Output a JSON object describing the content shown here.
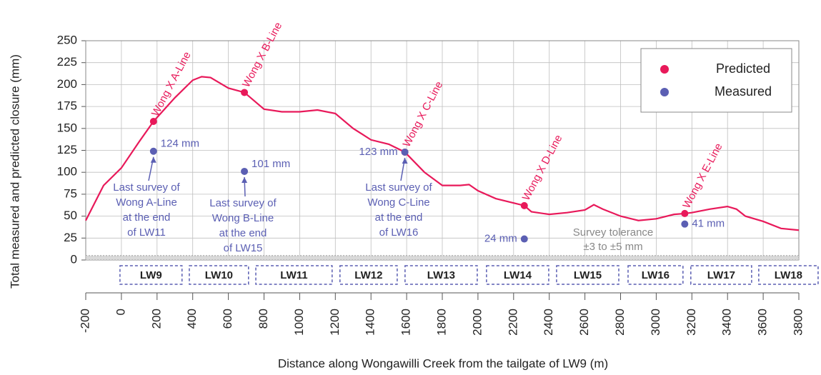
{
  "chart_data": {
    "type": "line",
    "y_title": "Total measured and predicted closure (mm)",
    "x_title": "Distance along Wongawilli Creek from the tailgate of LW9 (m)",
    "xlim": [
      -200,
      3800
    ],
    "xticks": [
      -200,
      0,
      200,
      400,
      600,
      800,
      1000,
      1200,
      1400,
      1600,
      1800,
      2000,
      2200,
      2400,
      2600,
      2800,
      3000,
      3200,
      3400,
      3600,
      3800
    ],
    "ylim": [
      0,
      250
    ],
    "yticks": [
      0,
      25,
      50,
      75,
      100,
      125,
      150,
      175,
      200,
      225,
      250
    ],
    "grid": true,
    "legend": "top-right",
    "profile": {
      "color": "#e8195a",
      "x": [
        -200,
        -100,
        0,
        100,
        180,
        300,
        400,
        450,
        500,
        600,
        690,
        800,
        900,
        1000,
        1100,
        1200,
        1300,
        1400,
        1500,
        1590,
        1700,
        1800,
        1900,
        1950,
        2000,
        2100,
        2200,
        2260,
        2300,
        2400,
        2500,
        2600,
        2650,
        2700,
        2800,
        2900,
        3000,
        3100,
        3160,
        3200,
        3300,
        3400,
        3450,
        3500,
        3600,
        3700,
        3800
      ],
      "values": [
        45,
        85,
        105,
        135,
        158,
        185,
        205,
        209,
        208,
        196,
        191,
        172,
        169,
        169,
        171,
        167,
        150,
        137,
        132,
        123,
        100,
        85,
        85,
        86,
        79,
        70,
        65,
        62,
        55,
        52,
        54,
        57,
        63,
        58,
        50,
        45,
        47,
        52,
        53,
        54,
        58,
        61,
        58,
        50,
        44,
        36,
        34
      ]
    },
    "series": [
      {
        "name": "Predicted",
        "color": "#e8195a",
        "x": [
          180,
          690,
          1590,
          2260,
          3160
        ],
        "values": [
          158,
          191,
          123,
          62,
          53
        ]
      },
      {
        "name": "Measured",
        "color": "#5b5fb3",
        "x": [
          180,
          690,
          1590,
          2260,
          3160
        ],
        "values": [
          124,
          101,
          123,
          24,
          41
        ],
        "value_labels": [
          "124 mm",
          "101 mm",
          "123 mm",
          "24 mm",
          "41 mm"
        ]
      }
    ],
    "line_labels": [
      "Wong X A-Line",
      "Wong X B-Line",
      "Wong X C-Line",
      "Wong X D-Line",
      "Wong X E-Line"
    ],
    "survey_notes": [
      [
        "Last survey of",
        "Wong A-Line",
        "at the end",
        "of LW11"
      ],
      [
        "Last survey of",
        "Wong B-Line",
        "at the end",
        "of LW15"
      ],
      [
        "Last survey of",
        "Wong C-Line",
        "at the end",
        "of LW16"
      ]
    ],
    "tolerance": {
      "lines": [
        "Survey tolerance",
        "±3 to ±5 mm"
      ],
      "band": [
        0,
        5
      ]
    },
    "panels": [
      {
        "label": "LW9",
        "start": -8,
        "end": 340
      },
      {
        "label": "LW10",
        "start": 381,
        "end": 713
      },
      {
        "label": "LW11",
        "start": 754,
        "end": 1182
      },
      {
        "label": "LW12",
        "start": 1226,
        "end": 1547
      },
      {
        "label": "LW13",
        "start": 1591,
        "end": 1996
      },
      {
        "label": "LW14",
        "start": 2048,
        "end": 2397
      },
      {
        "label": "LW15",
        "start": 2441,
        "end": 2790
      },
      {
        "label": "LW16",
        "start": 2842,
        "end": 3150
      },
      {
        "label": "LW17",
        "start": 3194,
        "end": 3535
      },
      {
        "label": "LW18",
        "start": 3575,
        "end": 3908
      }
    ]
  }
}
